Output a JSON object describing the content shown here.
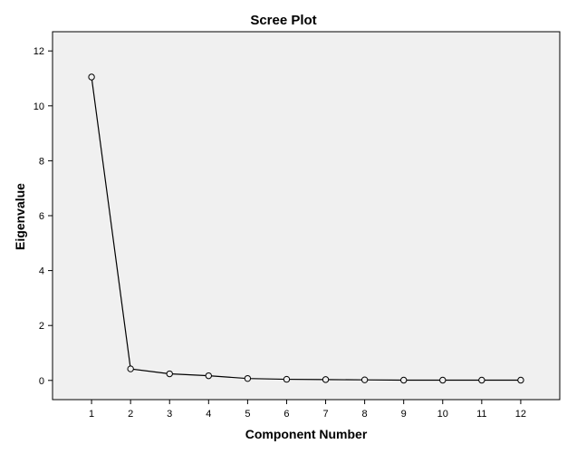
{
  "chart_data": {
    "type": "line",
    "title": "Scree Plot",
    "xlabel": "Component Number",
    "ylabel": "Eigenvalue",
    "x": [
      1,
      2,
      3,
      4,
      5,
      6,
      7,
      8,
      9,
      10,
      11,
      12
    ],
    "ylim": [
      -0.7,
      12.7
    ],
    "yticks": [
      0,
      2,
      4,
      6,
      8,
      10,
      12
    ],
    "series": [
      {
        "values": [
          11.05,
          0.42,
          0.24,
          0.17,
          0.07,
          0.04,
          0.03,
          0.02,
          0.01,
          0.01,
          0.01,
          0.01
        ]
      }
    ],
    "marker": "open-circle",
    "grid": false,
    "colors": {
      "plot_background": "#f0f0f0",
      "line": "#000000",
      "marker_fill": "#f0f0f0"
    }
  }
}
